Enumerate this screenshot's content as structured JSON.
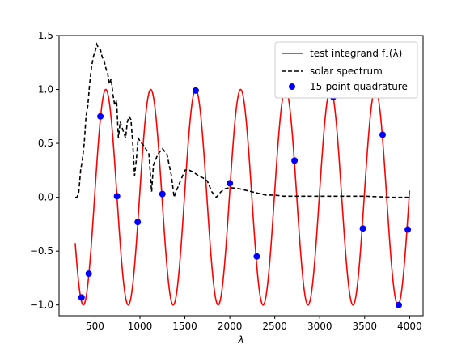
{
  "chart_data": {
    "type": "line",
    "title": "",
    "xlabel": "λ",
    "ylabel": "",
    "xlim": [
      100,
      4150
    ],
    "ylim": [
      -1.1,
      1.5
    ],
    "grid": false,
    "legend_position": "top-right",
    "xticks": [
      500,
      1000,
      1500,
      2000,
      2500,
      3000,
      3500,
      4000
    ],
    "xtick_labels": [
      "500",
      "1000",
      "1500",
      "2000",
      "2500",
      "3000",
      "3500",
      "4000"
    ],
    "yticks": [
      -1.0,
      -0.5,
      0.0,
      0.5,
      1.0,
      1.5
    ],
    "ytick_labels": [
      "−1.0",
      "−0.5",
      "0.0",
      "0.5",
      "1.0",
      "1.5"
    ],
    "series": [
      {
        "name": "test integrand f₁(λ)",
        "kind": "line",
        "style": "solid",
        "color": "#ff0000",
        "x_range": [
          280,
          4000
        ],
        "formula": "cos(2*pi*(x-620)/500)"
      },
      {
        "name": "solar spectrum",
        "kind": "line",
        "style": "dashed",
        "color": "#000000",
        "x": [
          280,
          300,
          320,
          340,
          360,
          380,
          400,
          420,
          440,
          460,
          480,
          500,
          520,
          540,
          560,
          580,
          600,
          620,
          640,
          660,
          680,
          700,
          720,
          740,
          760,
          780,
          800,
          820,
          840,
          860,
          880,
          900,
          920,
          940,
          960,
          980,
          1000,
          1050,
          1100,
          1130,
          1150,
          1200,
          1250,
          1300,
          1350,
          1380,
          1400,
          1450,
          1500,
          1550,
          1600,
          1650,
          1700,
          1750,
          1800,
          1850,
          1900,
          1950,
          2000,
          2100,
          2200,
          2300,
          2400,
          2500,
          2600,
          2800,
          3000,
          3200,
          3500,
          3800,
          4000
        ],
        "y": [
          0.0,
          0.0,
          0.05,
          0.25,
          0.35,
          0.5,
          0.75,
          0.85,
          1.05,
          1.2,
          1.3,
          1.35,
          1.42,
          1.38,
          1.37,
          1.3,
          1.27,
          1.2,
          1.15,
          1.05,
          1.1,
          0.95,
          0.85,
          0.9,
          0.55,
          0.7,
          0.65,
          0.6,
          0.55,
          0.7,
          0.75,
          0.72,
          0.5,
          0.2,
          0.35,
          0.55,
          0.52,
          0.47,
          0.4,
          0.05,
          0.3,
          0.4,
          0.45,
          0.4,
          0.2,
          0.0,
          0.05,
          0.15,
          0.25,
          0.25,
          0.23,
          0.2,
          0.18,
          0.15,
          0.05,
          0.0,
          0.05,
          0.08,
          0.09,
          0.08,
          0.06,
          0.04,
          0.02,
          0.02,
          0.01,
          0.01,
          0.01,
          0.01,
          0.01,
          0.0,
          0.0
        ]
      },
      {
        "name": "15-point quadrature",
        "kind": "scatter",
        "color": "#0000ff",
        "x": [
          350,
          430,
          560,
          745,
          975,
          1250,
          1620,
          2000,
          2300,
          2720,
          3150,
          3480,
          3700,
          3880,
          3980
        ],
        "y": [
          -0.93,
          -0.71,
          0.75,
          0.01,
          -0.23,
          0.03,
          0.99,
          0.13,
          -0.55,
          0.34,
          0.93,
          -0.29,
          0.58,
          -1.0,
          -0.3
        ]
      }
    ]
  }
}
